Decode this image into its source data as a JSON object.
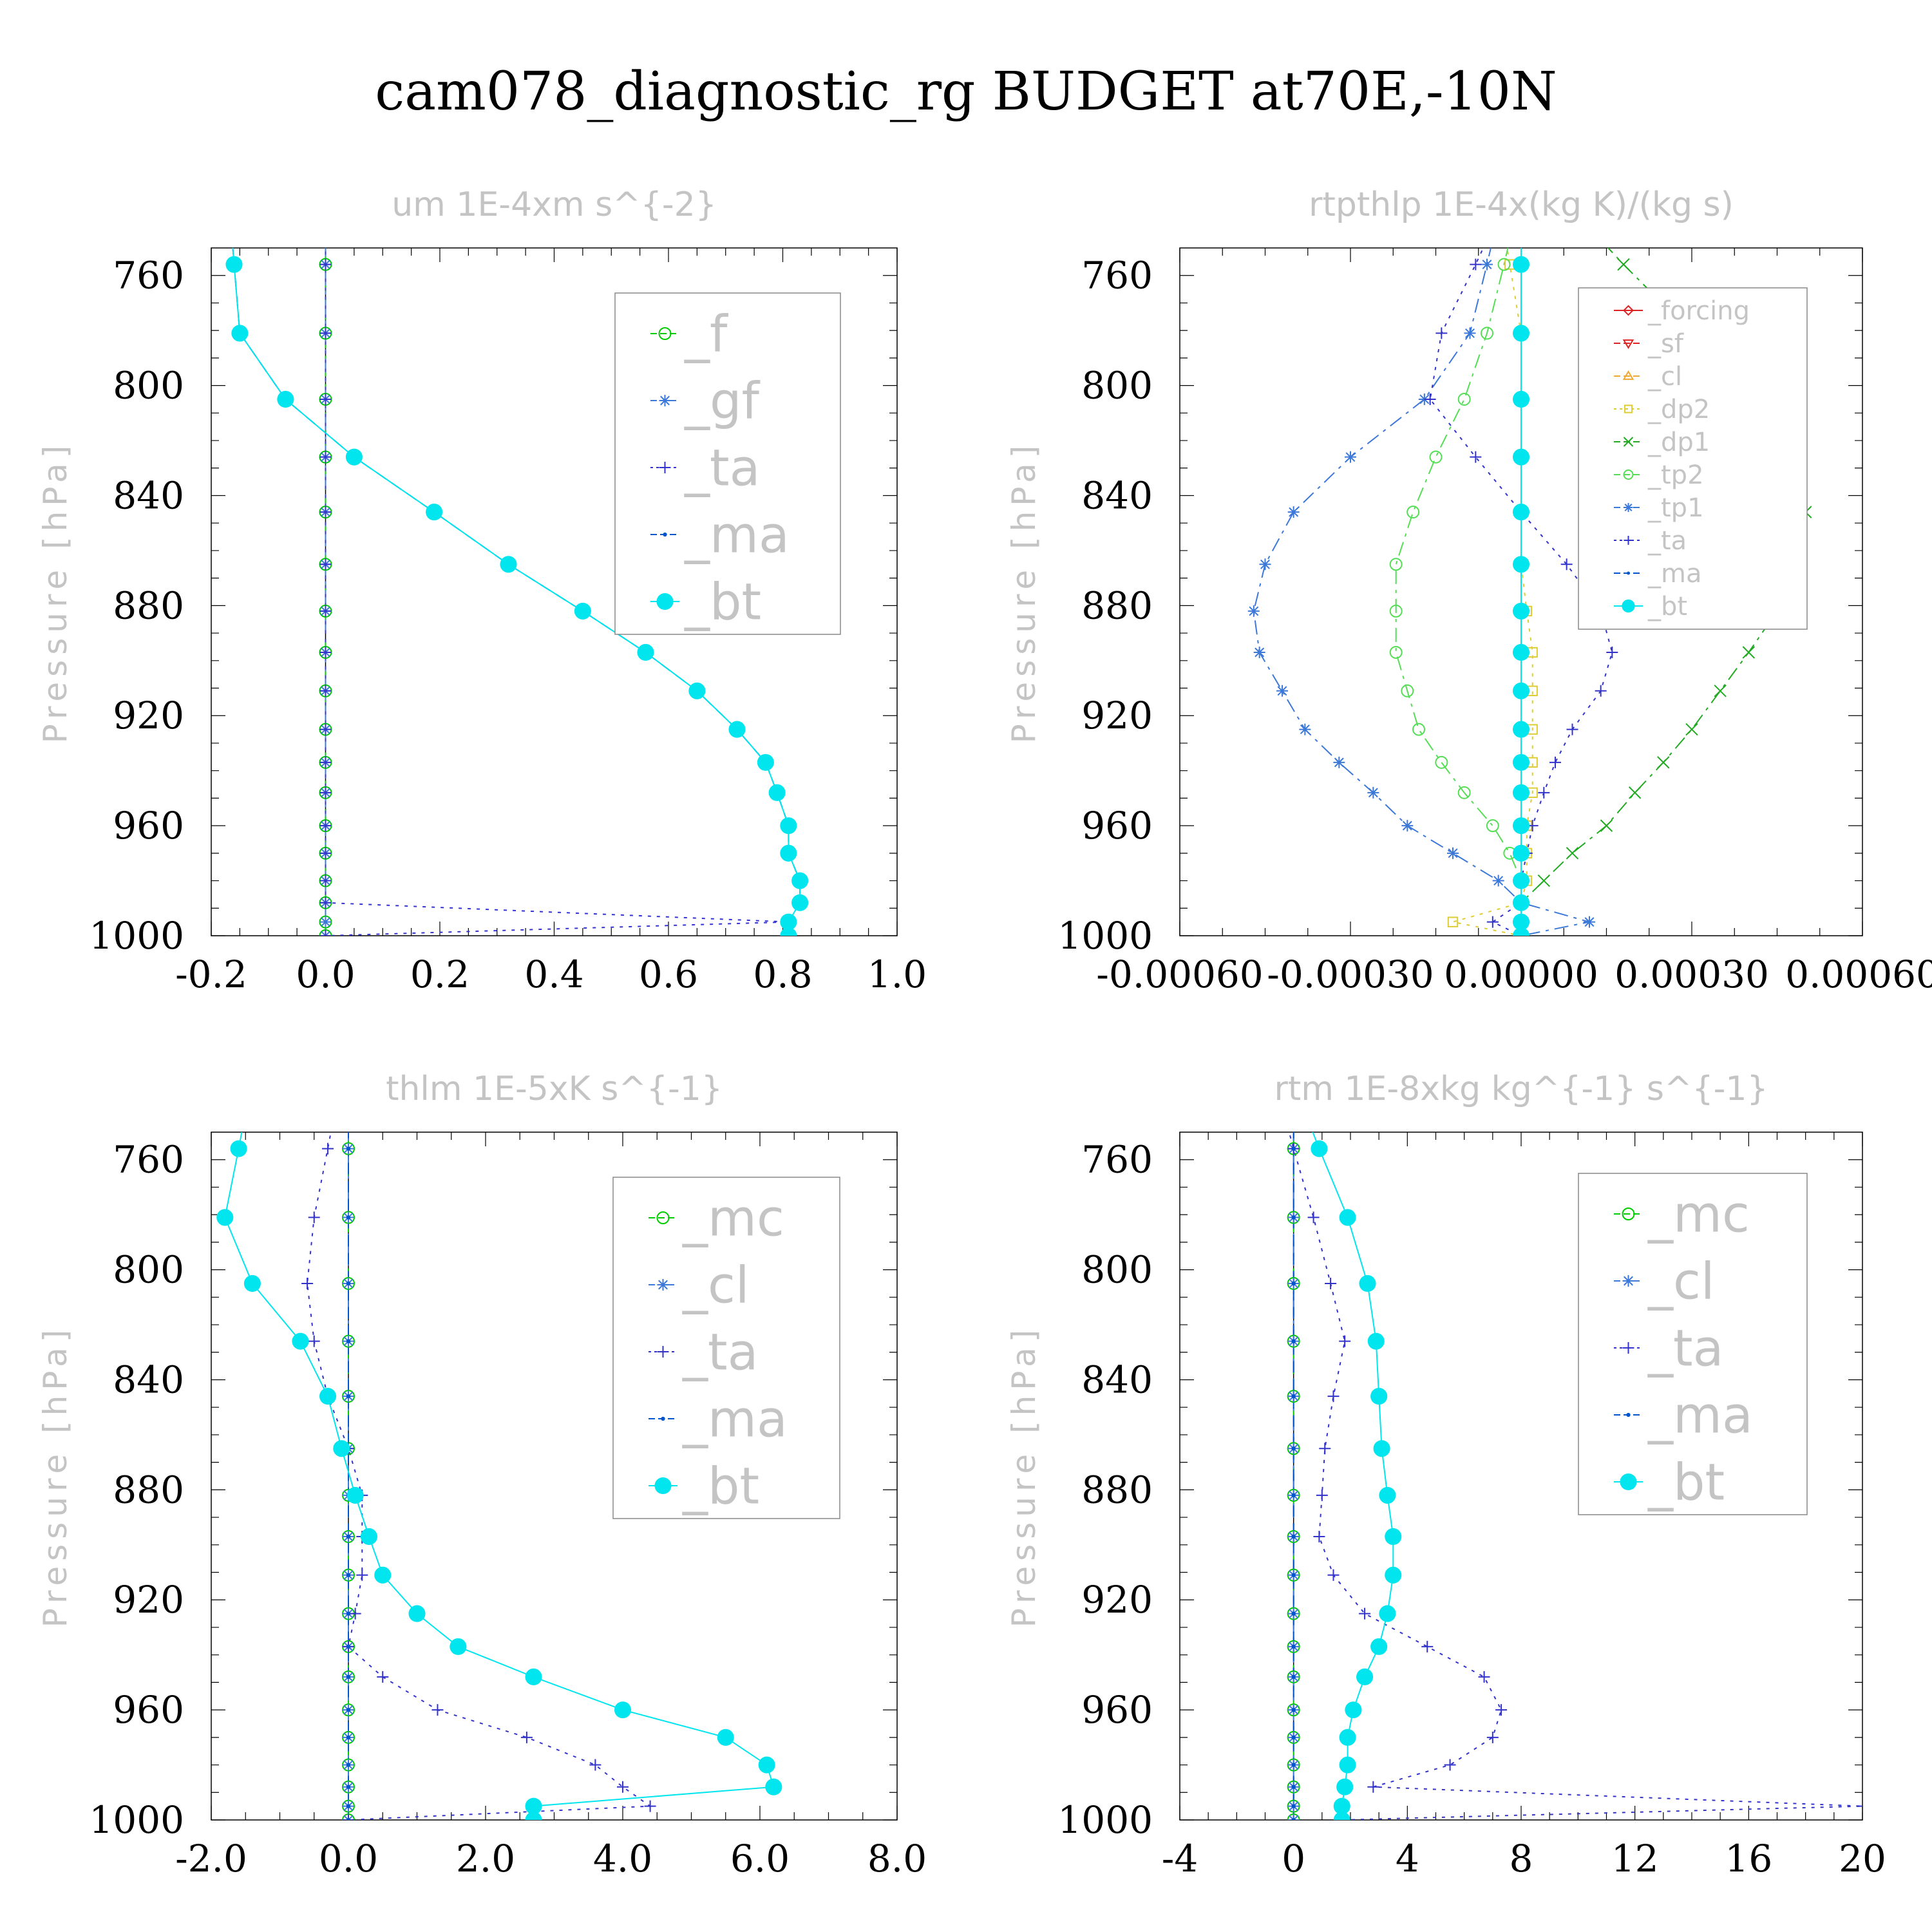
{
  "title": "cam078_diagnostic_rg  BUDGET at70E,-10N",
  "chart_data": [
    {
      "type": "line",
      "title": "um   1E-4xm s^{-2}",
      "ylabel": "Pressure [hPa]",
      "xlim": [
        -0.2,
        1.0
      ],
      "ylim": [
        1000,
        750
      ],
      "xticks": [
        "-0.2",
        "0.0",
        "0.2",
        "0.4",
        "0.6",
        "0.8",
        "1.0"
      ],
      "yticks": [
        "760",
        "800",
        "840",
        "880",
        "920",
        "960",
        "1000"
      ],
      "y": [
        756,
        781,
        805,
        826,
        846,
        865,
        882,
        897,
        911,
        925,
        937,
        948,
        960,
        970,
        980,
        988,
        995,
        1000
      ],
      "series": [
        {
          "name": "_f",
          "color": "#00cc00",
          "marker": "circle-open",
          "dash": "long-dash",
          "values": [
            0,
            0,
            0,
            0,
            0,
            0,
            0,
            0,
            0,
            0,
            0,
            0,
            0,
            0,
            0,
            0,
            0,
            0
          ]
        },
        {
          "name": "_gf",
          "color": "#3c78d8",
          "marker": "star",
          "dash": "dash-dot",
          "values": [
            0,
            0,
            0,
            0,
            0,
            0,
            0,
            0,
            0,
            0,
            0,
            0,
            0,
            0,
            0,
            0,
            0,
            0
          ]
        },
        {
          "name": "_ta",
          "color": "#3333cc",
          "marker": "plus",
          "dash": "dotted",
          "values": [
            0,
            0,
            0,
            0,
            0,
            0,
            0,
            0,
            0,
            0,
            0,
            0,
            0,
            0,
            0,
            0,
            0.81,
            0
          ]
        },
        {
          "name": "_ma",
          "color": "#0055cc",
          "marker": "dot",
          "dash": "dashed",
          "values": [
            -0.16,
            -0.15,
            -0.07,
            0.05,
            0.19,
            0.32,
            0.45,
            0.56,
            0.65,
            0.72,
            0.77,
            0.79,
            0.81,
            0.81,
            0.83,
            0.83,
            0.81,
            0.81
          ]
        },
        {
          "name": "_bt",
          "color": "#00e5ee",
          "marker": "circle-filled",
          "dash": "solid",
          "values": [
            -0.16,
            -0.15,
            -0.07,
            0.05,
            0.19,
            0.32,
            0.45,
            0.56,
            0.65,
            0.72,
            0.77,
            0.79,
            0.81,
            0.81,
            0.83,
            0.83,
            0.81,
            0.81
          ]
        }
      ],
      "legend": "top-right"
    },
    {
      "type": "line",
      "title": "rtpthlp   1E-4x(kg K)/(kg s)",
      "ylabel": "Pressure [hPa]",
      "xlim": [
        -0.0006,
        0.0006
      ],
      "ylim": [
        1000,
        750
      ],
      "xticks": [
        "-0.00060",
        "-0.00030",
        "0.00000",
        "0.00030",
        "0.00060"
      ],
      "yticks": [
        "760",
        "800",
        "840",
        "880",
        "920",
        "960",
        "1000"
      ],
      "y": [
        756,
        781,
        805,
        826,
        846,
        865,
        882,
        897,
        911,
        925,
        937,
        948,
        960,
        970,
        980,
        988,
        995,
        1000
      ],
      "series": [
        {
          "name": "_forcing",
          "color": "#dd2222",
          "marker": "diamond-open",
          "dash": "solid",
          "values": [
            0,
            0,
            0,
            0,
            0,
            0,
            0,
            0,
            0,
            0,
            0,
            0,
            0,
            0,
            0,
            0,
            0,
            0
          ]
        },
        {
          "name": "_sf",
          "color": "#dd2222",
          "marker": "triangle-down",
          "dash": "dashed",
          "values": [
            0,
            0,
            0,
            0,
            0,
            0,
            0,
            0,
            0,
            0,
            0,
            0,
            0,
            0,
            0,
            0,
            0,
            0
          ]
        },
        {
          "name": "_cl",
          "color": "#f0a830",
          "marker": "triangle-up",
          "dash": "dashed",
          "values": [
            0,
            0,
            0,
            0,
            0,
            0,
            0,
            0,
            0,
            0,
            0,
            0,
            0,
            0,
            0,
            0,
            0,
            0
          ]
        },
        {
          "name": "_dp2",
          "color": "#ddcc33",
          "marker": "square-open",
          "dash": "dotted",
          "values": [
            -2e-05,
            0,
            0,
            0,
            0,
            0,
            1e-05,
            2e-05,
            2e-05,
            2e-05,
            2e-05,
            2e-05,
            1e-05,
            1e-05,
            1e-05,
            0,
            -0.00012,
            0
          ]
        },
        {
          "name": "_dp1",
          "color": "#22aa22",
          "marker": "x",
          "dash": "dash-dot",
          "values": [
            0.00018,
            0.0003,
            0.00043,
            0.00049,
            0.0005,
            0.00048,
            0.00045,
            0.0004,
            0.00035,
            0.0003,
            0.00025,
            0.0002,
            0.00015,
            9e-05,
            4e-05,
            0,
            0,
            0
          ]
        },
        {
          "name": "_tp2",
          "color": "#55dd55",
          "marker": "circle-open",
          "dash": "dash-dot",
          "values": [
            -3e-05,
            -6e-05,
            -0.0001,
            -0.00015,
            -0.00019,
            -0.00022,
            -0.00022,
            -0.00022,
            -0.0002,
            -0.00018,
            -0.00014,
            -0.0001,
            -5e-05,
            -2e-05,
            0,
            0,
            0,
            0
          ]
        },
        {
          "name": "_tp1",
          "color": "#3c78d8",
          "marker": "star",
          "dash": "dash-dot",
          "values": [
            -6e-05,
            -9e-05,
            -0.00017,
            -0.0003,
            -0.0004,
            -0.00045,
            -0.00047,
            -0.00046,
            -0.00042,
            -0.00038,
            -0.00032,
            -0.00026,
            -0.0002,
            -0.00012,
            -4e-05,
            0,
            0.00012,
            0
          ]
        },
        {
          "name": "_ta",
          "color": "#3333cc",
          "marker": "plus",
          "dash": "dotted",
          "values": [
            -8e-05,
            -0.00014,
            -0.00016,
            -8e-05,
            0,
            8e-05,
            0.00014,
            0.00016,
            0.00014,
            9e-05,
            6e-05,
            4e-05,
            2e-05,
            1e-05,
            0,
            0,
            -5e-05,
            0
          ]
        },
        {
          "name": "_ma",
          "color": "#0055cc",
          "marker": "dot",
          "dash": "dashed",
          "values": [
            0,
            0,
            0,
            0,
            0,
            0,
            0,
            0,
            0,
            0,
            0,
            0,
            0,
            0,
            0,
            0,
            0,
            0
          ]
        },
        {
          "name": "_bt",
          "color": "#00e5ee",
          "marker": "circle-filled",
          "dash": "solid",
          "values": [
            0,
            0,
            0,
            0,
            0,
            0,
            0,
            0,
            0,
            0,
            0,
            0,
            0,
            0,
            0,
            0,
            0,
            0
          ]
        }
      ],
      "legend": "top-right"
    },
    {
      "type": "line",
      "title": "thlm   1E-5xK s^{-1}",
      "ylabel": "Pressure [hPa]",
      "xlim": [
        -2.0,
        8.0
      ],
      "ylim": [
        1000,
        750
      ],
      "xticks": [
        "-2.0",
        "0.0",
        "2.0",
        "4.0",
        "6.0",
        "8.0"
      ],
      "yticks": [
        "760",
        "800",
        "840",
        "880",
        "920",
        "960",
        "1000"
      ],
      "y": [
        756,
        781,
        805,
        826,
        846,
        865,
        882,
        897,
        911,
        925,
        937,
        948,
        960,
        970,
        980,
        988,
        995,
        1000
      ],
      "series": [
        {
          "name": "_mc",
          "color": "#00cc00",
          "marker": "circle-open",
          "dash": "long-dash",
          "values": [
            0,
            0,
            0,
            0,
            0,
            0,
            0,
            0,
            0,
            0,
            0,
            0,
            0,
            0,
            0,
            0,
            0,
            0
          ]
        },
        {
          "name": "_cl",
          "color": "#3c78d8",
          "marker": "star",
          "dash": "dash-dot",
          "values": [
            0,
            0,
            0,
            0,
            0,
            0,
            0,
            0,
            0,
            0,
            0,
            0,
            0,
            0,
            0,
            0,
            0,
            0
          ]
        },
        {
          "name": "_ta",
          "color": "#3333cc",
          "marker": "plus",
          "dash": "dotted",
          "values": [
            -0.3,
            -0.5,
            -0.6,
            -0.5,
            -0.3,
            0,
            0.2,
            0.2,
            0.2,
            0.1,
            0,
            0.5,
            1.3,
            2.6,
            3.6,
            4.0,
            4.4,
            0
          ]
        },
        {
          "name": "_ma",
          "color": "#0055cc",
          "marker": "dot",
          "dash": "dashed",
          "values": [
            0,
            0,
            0,
            0,
            0,
            0,
            0,
            0,
            0,
            0,
            0,
            0,
            0,
            0,
            0,
            0,
            0,
            0
          ]
        },
        {
          "name": "_bt",
          "color": "#00e5ee",
          "marker": "circle-filled",
          "dash": "solid",
          "values": [
            -1.6,
            -1.8,
            -1.4,
            -0.7,
            -0.3,
            -0.1,
            0.1,
            0.3,
            0.5,
            1.0,
            1.6,
            2.7,
            4.0,
            5.5,
            6.1,
            6.2,
            2.7,
            2.7
          ]
        }
      ],
      "legend": "top-right"
    },
    {
      "type": "line",
      "title": "rtm   1E-8xkg kg^{-1} s^{-1}",
      "ylabel": "Pressure [hPa]",
      "xlim": [
        -4,
        20
      ],
      "ylim": [
        1000,
        750
      ],
      "xticks": [
        "-4",
        "0",
        "4",
        "8",
        "12",
        "16",
        "20"
      ],
      "yticks": [
        "760",
        "800",
        "840",
        "880",
        "920",
        "960",
        "1000"
      ],
      "y": [
        756,
        781,
        805,
        826,
        846,
        865,
        882,
        897,
        911,
        925,
        937,
        948,
        960,
        970,
        980,
        988,
        995,
        1000
      ],
      "series": [
        {
          "name": "_mc",
          "color": "#00cc00",
          "marker": "circle-open",
          "dash": "long-dash",
          "values": [
            0,
            0,
            0,
            0,
            0,
            0,
            0,
            0,
            0,
            0,
            0,
            0,
            0,
            0,
            0,
            0,
            0,
            0
          ]
        },
        {
          "name": "_cl",
          "color": "#3c78d8",
          "marker": "star",
          "dash": "dash-dot",
          "values": [
            0,
            0,
            0,
            0,
            0,
            0,
            0,
            0,
            0,
            0,
            0,
            0,
            0,
            0,
            0,
            0,
            0,
            0
          ]
        },
        {
          "name": "_ta",
          "color": "#3333cc",
          "marker": "plus",
          "dash": "dotted",
          "values": [
            0,
            0.7,
            1.3,
            1.8,
            1.4,
            1.1,
            1.0,
            0.9,
            1.4,
            2.5,
            4.7,
            6.7,
            7.3,
            7.0,
            5.5,
            2.8,
            20.0,
            1.7
          ]
        },
        {
          "name": "_ma",
          "color": "#0055cc",
          "marker": "dot",
          "dash": "dashed",
          "values": [
            0,
            0,
            0,
            0,
            0,
            0,
            0,
            0,
            0,
            0,
            0,
            0,
            0,
            0,
            0,
            0,
            0,
            0
          ]
        },
        {
          "name": "_bt",
          "color": "#00e5ee",
          "marker": "circle-filled",
          "dash": "solid",
          "values": [
            0.9,
            1.9,
            2.6,
            2.9,
            3.0,
            3.1,
            3.3,
            3.5,
            3.5,
            3.3,
            3.0,
            2.5,
            2.1,
            1.9,
            1.9,
            1.8,
            1.7,
            1.7
          ]
        }
      ],
      "legend": "top-right"
    }
  ]
}
